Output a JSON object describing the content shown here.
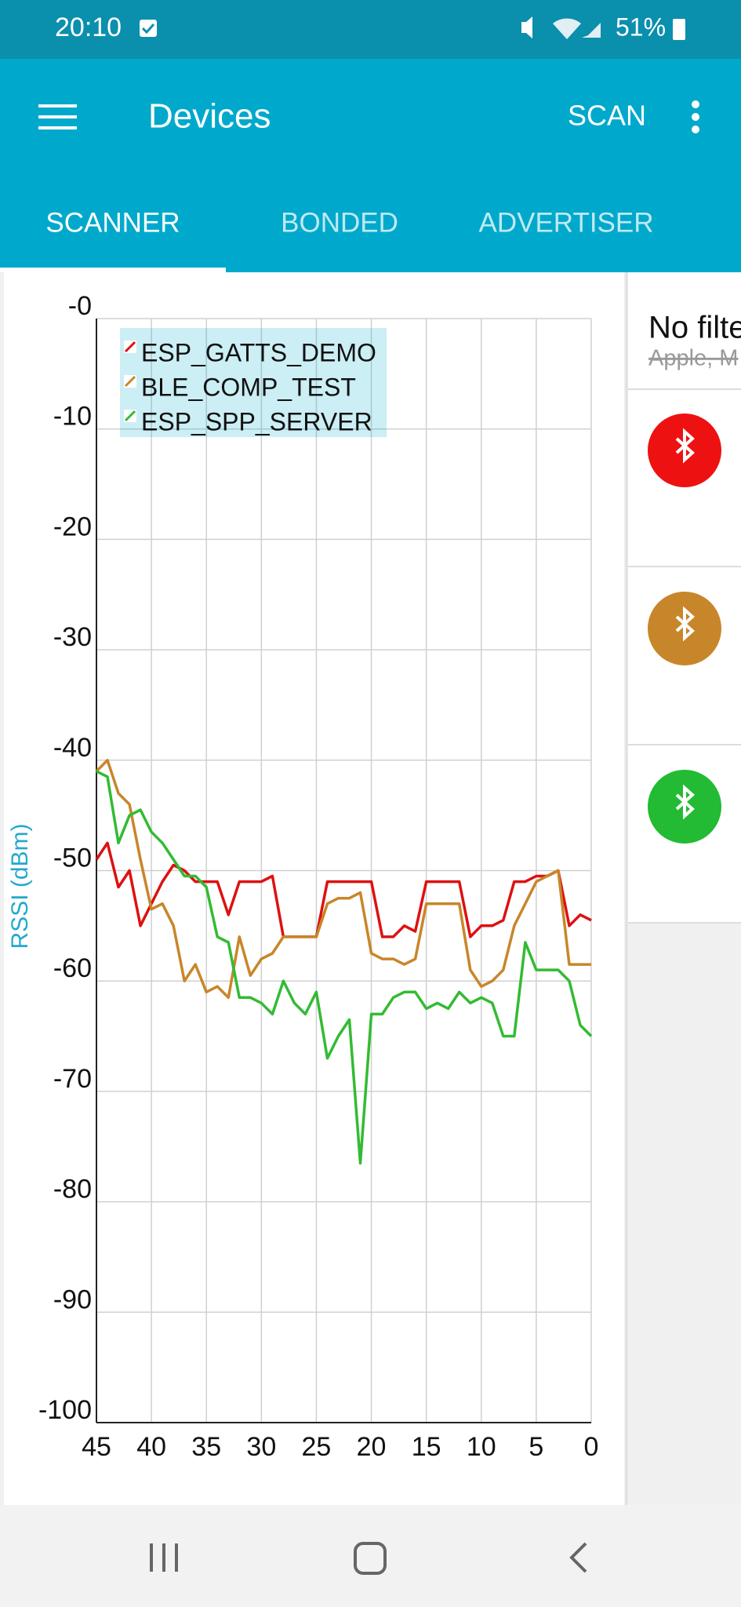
{
  "status_bar": {
    "time": "20:10",
    "battery": "51%"
  },
  "app_bar": {
    "title": "Devices",
    "action": "SCAN"
  },
  "tabs": [
    "SCANNER",
    "BONDED",
    "ADVERTISER"
  ],
  "device_panel": {
    "filter_title": "No filte",
    "filter_subtitle": "Apple, M"
  },
  "chart_data": {
    "type": "line",
    "y_label": "RSSI (dBm)",
    "grid": true,
    "legend": "top-left",
    "x": [
      45,
      44,
      43,
      42,
      41,
      40,
      39,
      38,
      37,
      36,
      35,
      34,
      33,
      32,
      31,
      30,
      29,
      28,
      27,
      26,
      25,
      24,
      23,
      22,
      21,
      20,
      19,
      18,
      17,
      16,
      15,
      14,
      13,
      12,
      11,
      10,
      9,
      8,
      7,
      6,
      5,
      4,
      3,
      2,
      1,
      0
    ],
    "xlim": [
      45,
      0
    ],
    "xticks": [
      45,
      40,
      35,
      30,
      25,
      20,
      15,
      10,
      5,
      0
    ],
    "ylim": [
      -100,
      0
    ],
    "yticks": [
      {
        "value": 0,
        "label": "-0"
      },
      -10,
      -20,
      -30,
      -40,
      -50,
      -60,
      -70,
      -80,
      -90,
      -100
    ],
    "series": [
      {
        "name": "ESP_GATTS_DEMO",
        "color": "#dd1111",
        "values": [
          -49,
          -47.5,
          -51.5,
          -50,
          -55,
          -53,
          -51,
          -49.5,
          -50,
          -51,
          -51,
          -51,
          -54,
          -51,
          -51,
          -51,
          -50.5,
          -56,
          -56,
          -56,
          -56,
          -51,
          -51,
          -51,
          -51,
          -51,
          -56,
          -56,
          -55,
          -55.5,
          -51,
          -51,
          -51,
          -51,
          -56,
          -55,
          -55,
          -54.5,
          -51,
          -51,
          -50.5,
          -50.5,
          -50,
          -55,
          -54,
          -54.5
        ]
      },
      {
        "name": "BLE_COMP_TEST",
        "color": "#c8862a",
        "values": [
          -41,
          -40,
          -43,
          -44,
          -49,
          -53.5,
          -53,
          -55,
          -60,
          -58.5,
          -61,
          -60.5,
          -61.5,
          -56,
          -59.5,
          -58,
          -57.5,
          -56,
          -56,
          -56,
          -56,
          -53,
          -52.5,
          -52.5,
          -52,
          -57.5,
          -58,
          -58,
          -58.5,
          -58,
          -53,
          -53,
          -53,
          -53,
          -59,
          -60.5,
          -60,
          -59,
          -55,
          -53,
          -51,
          -50.5,
          -50,
          -58.5,
          -58.5,
          -58.5
        ]
      },
      {
        "name": "ESP_SPP_SERVER",
        "color": "#33bb33",
        "values": [
          -41,
          -41.5,
          -47.5,
          -45,
          -44.5,
          -46.5,
          -47.5,
          -49,
          -50.5,
          -50.5,
          -51.5,
          -56,
          -56.5,
          -61.5,
          -61.5,
          -62,
          -63,
          -60,
          -62,
          -63,
          -61,
          -67,
          -65,
          -63.5,
          -76.5,
          -63,
          -63,
          -61.5,
          -61,
          -61,
          -62.5,
          -62,
          -62.5,
          -61,
          -62,
          -61.5,
          -62,
          -65,
          -65,
          -56.5,
          -59,
          -59,
          -59,
          -60,
          -64,
          -65
        ]
      }
    ]
  }
}
